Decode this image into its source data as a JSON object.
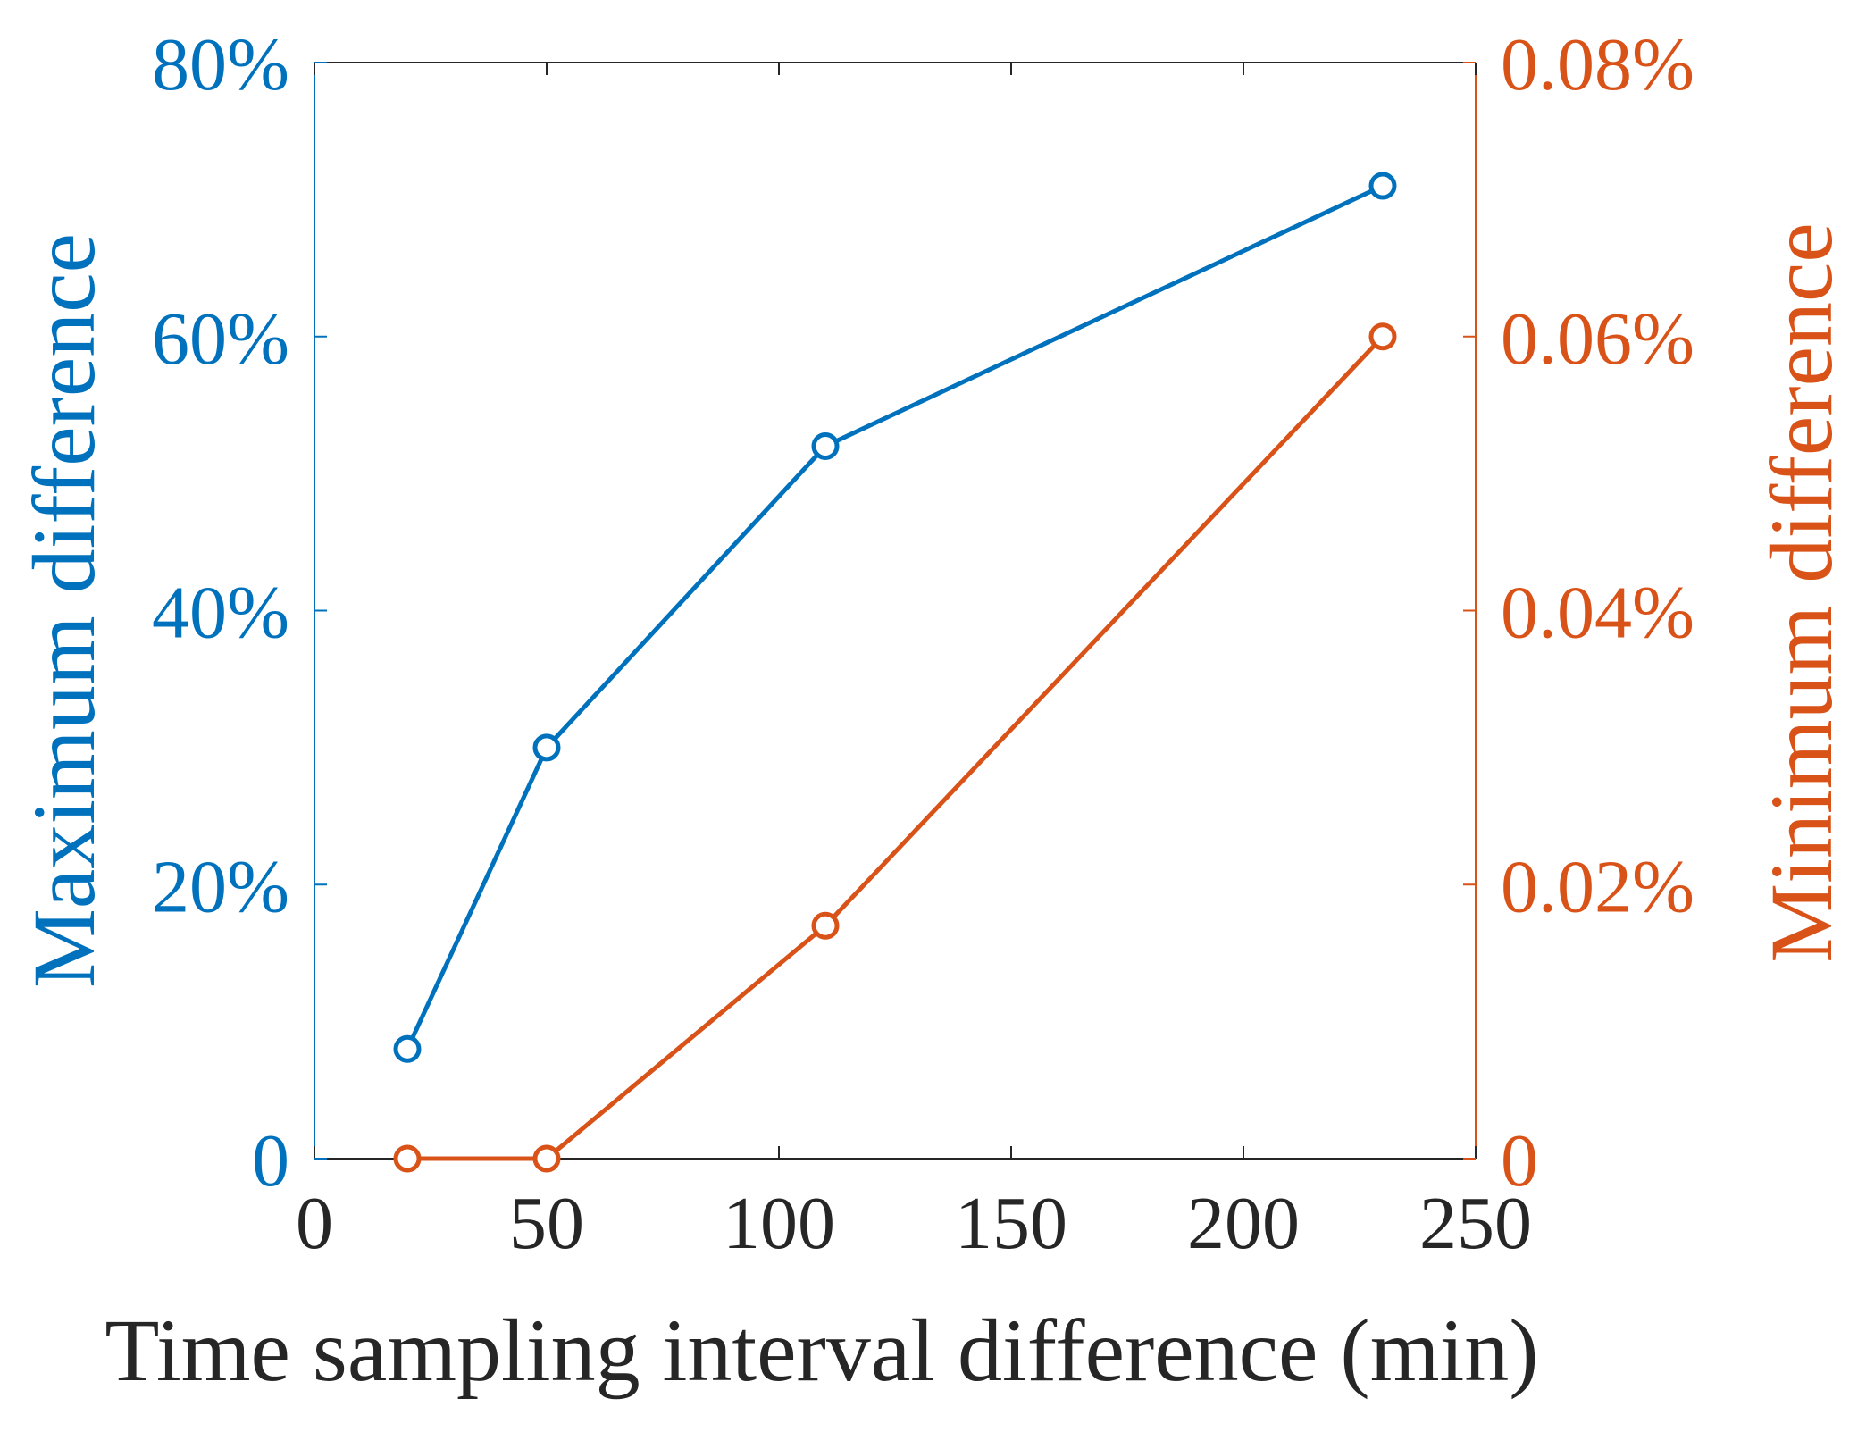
{
  "chart_data": {
    "type": "line",
    "title": "",
    "xlabel": "Time sampling interval difference (min)",
    "ylabel_left": "Maximum difference",
    "ylabel_right": "Minimum difference",
    "xlim": [
      0,
      250
    ],
    "ylim_left": [
      0,
      80
    ],
    "ylim_right": [
      0,
      0.08
    ],
    "x_ticks": [
      0,
      50,
      100,
      150,
      200,
      250
    ],
    "x_tick_labels": [
      "0",
      "50",
      "100",
      "150",
      "200",
      "250"
    ],
    "y_left_ticks": [
      0,
      20,
      40,
      60,
      80
    ],
    "y_left_tick_labels": [
      "0",
      "20%",
      "40%",
      "60%",
      "80%"
    ],
    "y_right_ticks": [
      0,
      0.02,
      0.04,
      0.06,
      0.08
    ],
    "y_right_tick_labels": [
      "0",
      "0.02%",
      "0.04%",
      "0.06%",
      "0.08%"
    ],
    "grid": false,
    "series": [
      {
        "name": "Maximum difference",
        "axis": "left",
        "marker": "circle-open",
        "color": "#0072BD",
        "x": [
          20,
          50,
          110,
          230
        ],
        "values": [
          8,
          30,
          52,
          71
        ]
      },
      {
        "name": "Minimum difference",
        "axis": "right",
        "marker": "circle-open",
        "color": "#D95319",
        "x": [
          20,
          50,
          110,
          230
        ],
        "values": [
          0,
          0,
          0.017,
          0.06
        ]
      }
    ],
    "colors": {
      "left_axis": "#0072BD",
      "right_axis": "#D95319",
      "x_axis": "#262626"
    }
  }
}
